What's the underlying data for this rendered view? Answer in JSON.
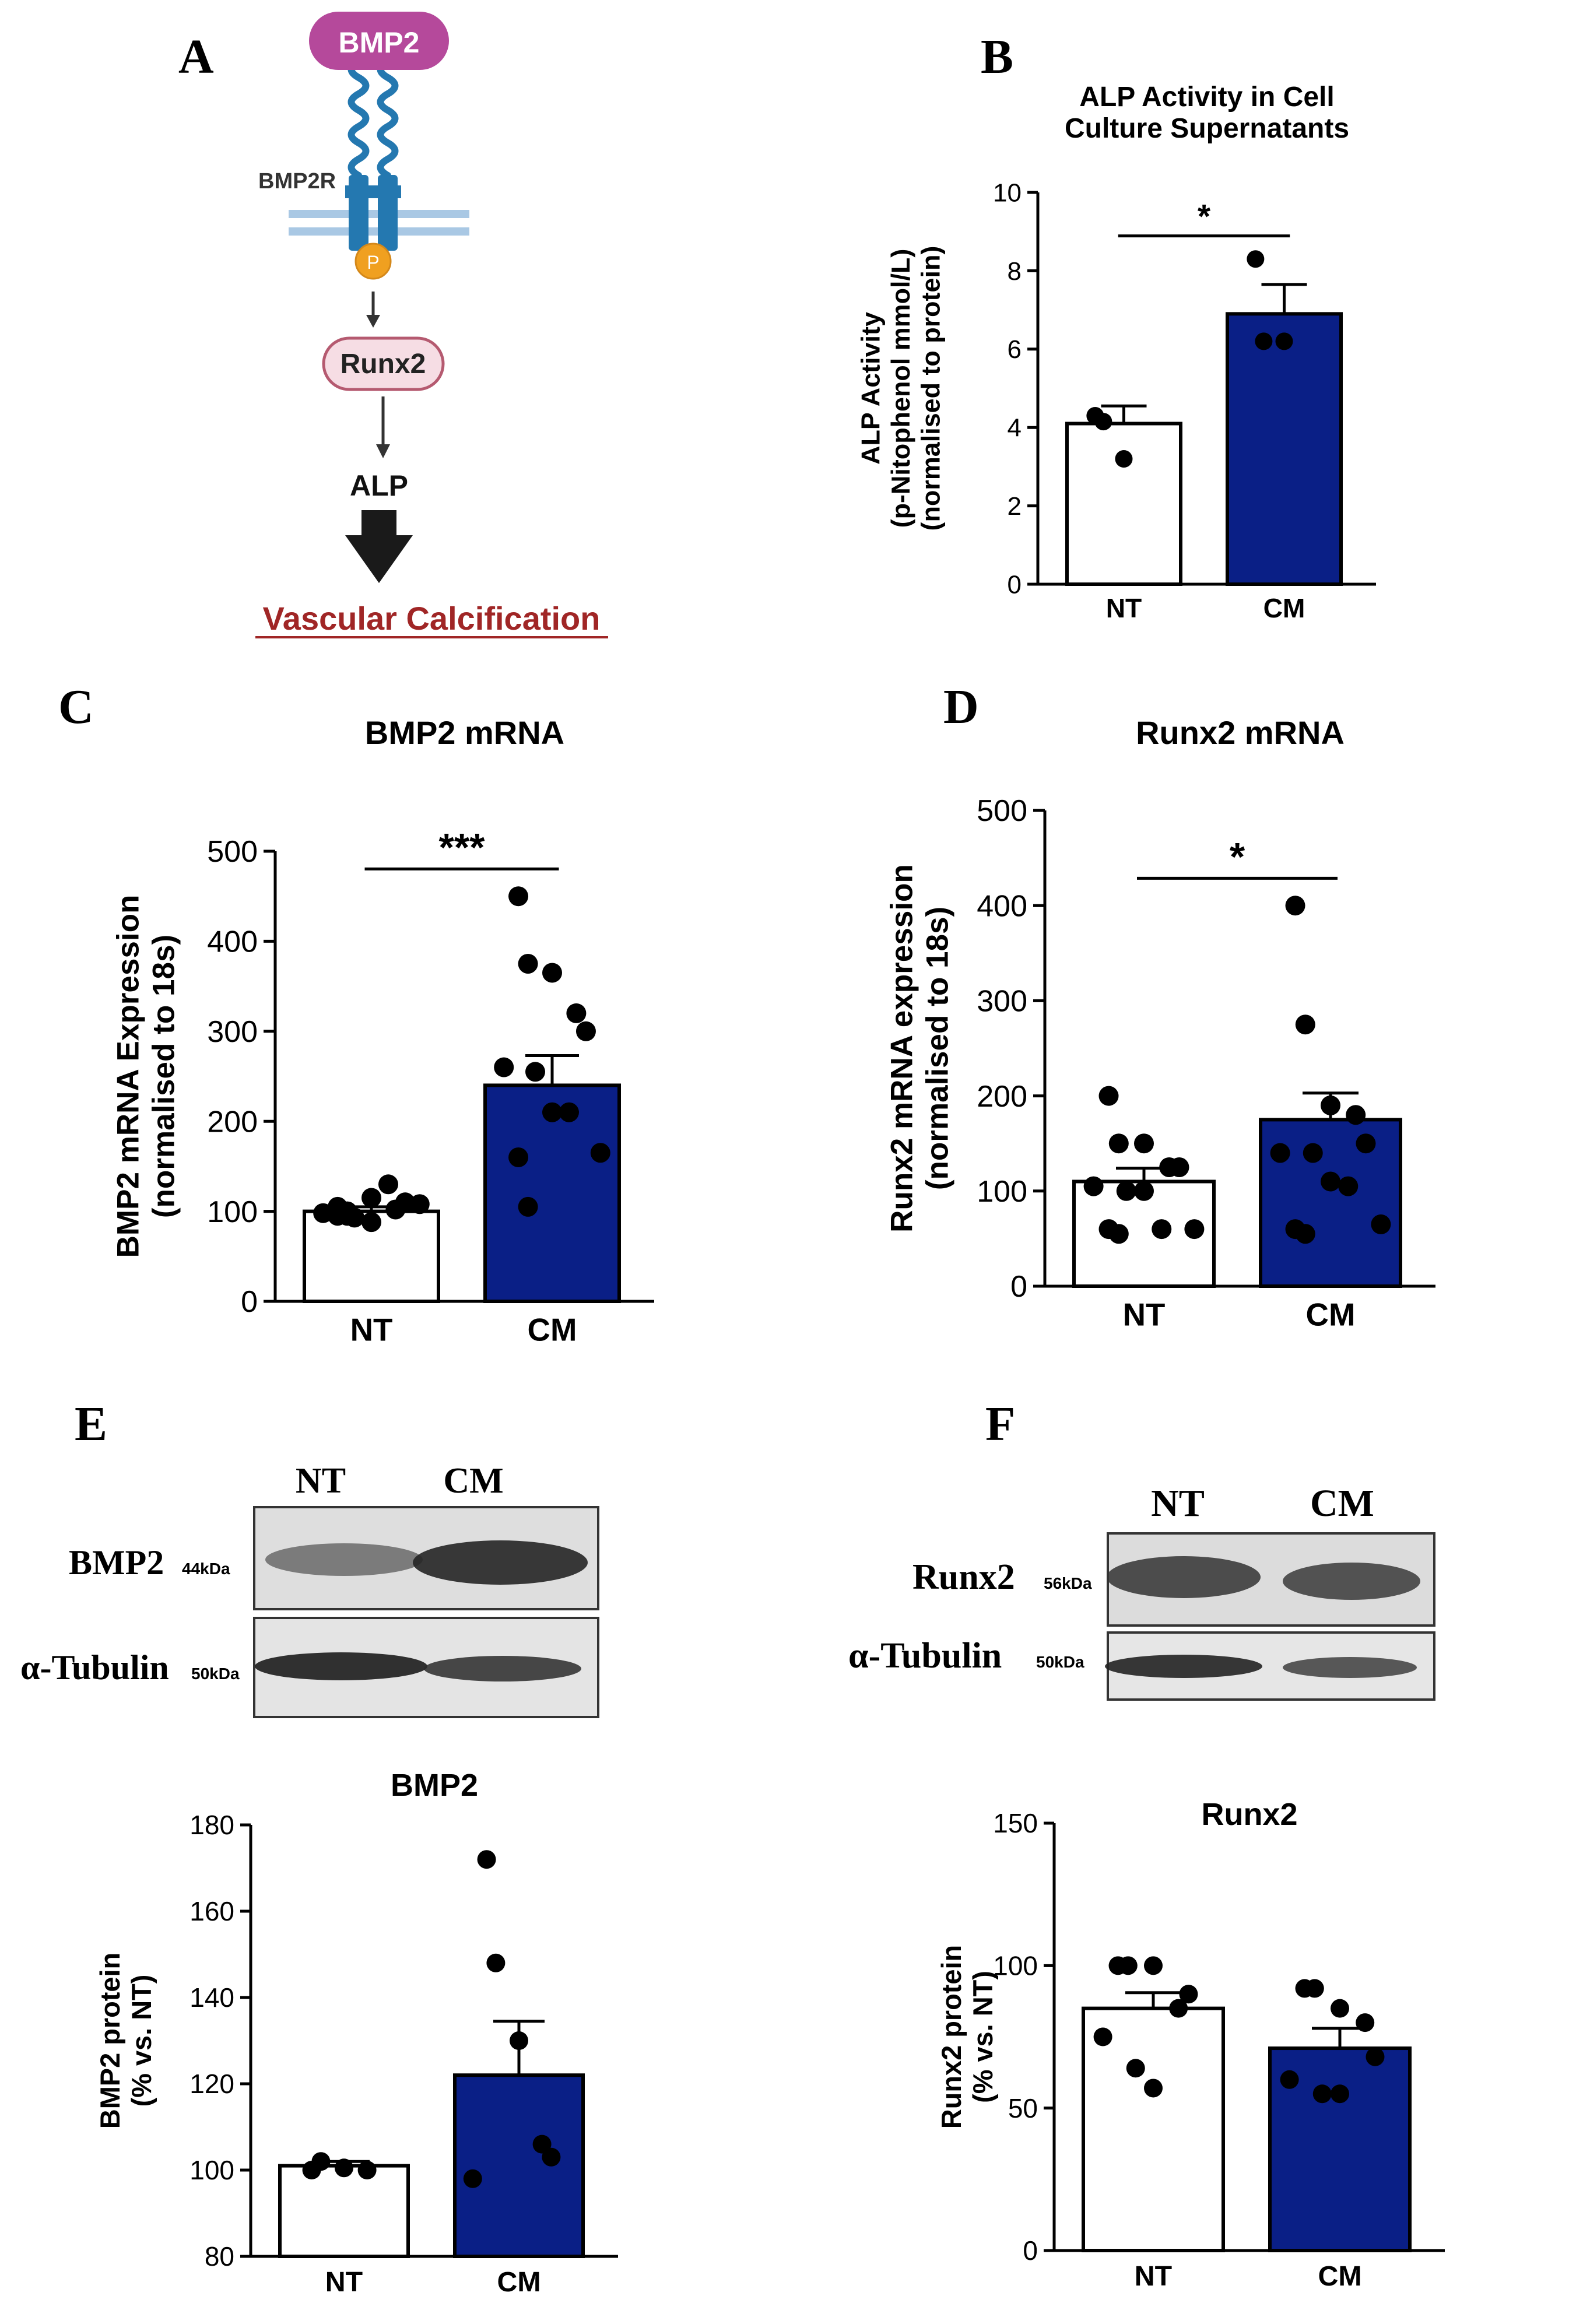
{
  "colors": {
    "cm_fill": "#0a1f86",
    "nt_fill": "#ffffff",
    "axis": "#000000",
    "bmp2_ligand": "#b5499b",
    "receptor": "#2478b0",
    "phospho": "#f0a020",
    "runx2_box": "#f6dde4",
    "runx2_border": "#b55a70",
    "calcification_text": "#a02626",
    "membrane": "#a9c8e4"
  },
  "panels": {
    "A": {
      "letter": "A",
      "ligand": "BMP2",
      "receptor": "BMP2R",
      "phospho": "P",
      "tf": "Runx2",
      "enzyme": "ALP",
      "outcome": "Vascular Calcification"
    },
    "B": {
      "letter": "B"
    },
    "C": {
      "letter": "C"
    },
    "D": {
      "letter": "D"
    },
    "E": {
      "letter": "E",
      "lanes": [
        "NT",
        "CM"
      ],
      "rows": [
        {
          "label": "BMP2",
          "kda": "44kDa"
        },
        {
          "label": "α-Tubulin",
          "kda": "50kDa"
        }
      ]
    },
    "F": {
      "letter": "F",
      "lanes": [
        "NT",
        "CM"
      ],
      "rows": [
        {
          "label": "Runx2",
          "kda": "56kDa"
        },
        {
          "label": "α-Tubulin",
          "kda": "50kDa"
        }
      ]
    }
  },
  "chart_data": [
    {
      "id": "B",
      "type": "bar",
      "title": "ALP Activity in Cell Culture Supernatants",
      "title_lines": [
        "ALP Activity in Cell",
        "Culture Supernatants"
      ],
      "ylabel_lines": [
        "ALP Activity",
        "(p-Nitophenol mmol/L)",
        "(normalised to protein)"
      ],
      "categories": [
        "NT",
        "CM"
      ],
      "values": [
        4.1,
        6.9
      ],
      "sem": [
        0.45,
        0.75
      ],
      "points": [
        [
          4.3,
          4.15,
          3.2
        ],
        [
          8.3,
          6.2,
          6.2
        ]
      ],
      "ylim": [
        0,
        10
      ],
      "yticks": [
        0,
        2,
        4,
        6,
        8,
        10
      ],
      "significance": "*"
    },
    {
      "id": "C",
      "type": "bar",
      "title": "BMP2 mRNA",
      "ylabel_lines": [
        "BMP2 mRNA Expression",
        "(normalised to 18s)"
      ],
      "categories": [
        "NT",
        "CM"
      ],
      "values": [
        100,
        240
      ],
      "sem": [
        5,
        33
      ],
      "points": [
        [
          105,
          95,
          88,
          102,
          110,
          98,
          93,
          115,
          130,
          108,
          95,
          100
        ],
        [
          450,
          375,
          365,
          320,
          300,
          260,
          255,
          210,
          210,
          165,
          160,
          105
        ]
      ],
      "ylim": [
        0,
        500
      ],
      "yticks": [
        0,
        100,
        200,
        300,
        400,
        500
      ],
      "significance": "***"
    },
    {
      "id": "D",
      "type": "bar",
      "title": "Runx2 mRNA",
      "ylabel_lines": [
        "Runx2 mRNA expression",
        "(normalised to 18s)"
      ],
      "categories": [
        "NT",
        "CM"
      ],
      "values": [
        110,
        175
      ],
      "sem": [
        14,
        28
      ],
      "points": [
        [
          200,
          150,
          150,
          125,
          125,
          105,
          100,
          100,
          60,
          60,
          60,
          55
        ],
        [
          400,
          275,
          190,
          180,
          150,
          140,
          140,
          110,
          105,
          65,
          60,
          55
        ]
      ],
      "ylim": [
        0,
        500
      ],
      "yticks": [
        0,
        100,
        200,
        300,
        400,
        500
      ],
      "significance": "*"
    },
    {
      "id": "E",
      "type": "bar",
      "title": "BMP2",
      "ylabel_lines": [
        "BMP2 protein",
        "(% vs. NT)"
      ],
      "categories": [
        "NT",
        "CM"
      ],
      "values": [
        101,
        122
      ],
      "sem": [
        1,
        12.5
      ],
      "points": [
        [
          100,
          102,
          100.5,
          100
        ],
        [
          172,
          148,
          130,
          106,
          103,
          98
        ]
      ],
      "ylim": [
        80,
        180
      ],
      "yticks": [
        80,
        100,
        120,
        140,
        160,
        180
      ],
      "significance": ""
    },
    {
      "id": "F",
      "type": "bar",
      "title": "Runx2",
      "ylabel_lines": [
        "Runx2 protein",
        "(% vs. NT)"
      ],
      "categories": [
        "NT",
        "CM"
      ],
      "values": [
        85,
        71
      ],
      "sem": [
        5.5,
        7
      ],
      "points": [
        [
          100,
          100,
          100,
          85,
          90,
          75,
          64,
          57
        ],
        [
          92,
          92,
          85,
          80,
          68,
          60,
          55,
          55
        ]
      ],
      "ylim": [
        0,
        150
      ],
      "yticks": [
        0,
        50,
        100,
        150
      ],
      "significance": ""
    }
  ]
}
